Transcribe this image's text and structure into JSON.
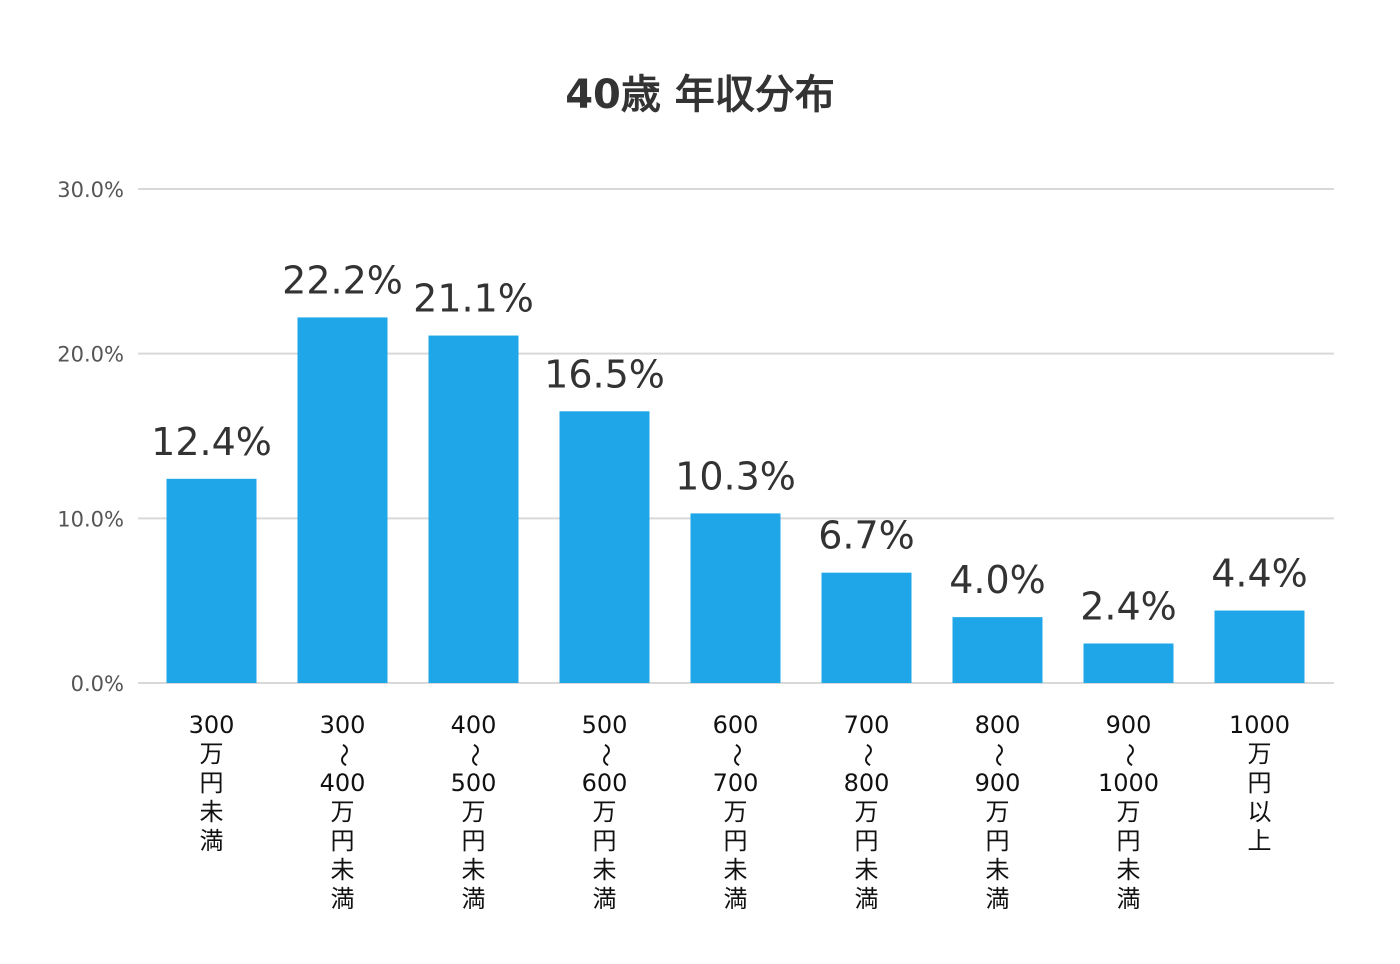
{
  "chart_data": {
    "type": "bar",
    "title": "40歳 年収分布",
    "xlabel": "",
    "ylabel": "",
    "ylim": [
      0,
      30
    ],
    "grid": true,
    "yticks": [
      "0.0%",
      "10.0%",
      "20.0%",
      "30.0%"
    ],
    "ytick_values": [
      0,
      10,
      20,
      30
    ],
    "categories": [
      [
        "300",
        "万",
        "円",
        "未",
        "満"
      ],
      [
        "300",
        "～",
        "400",
        "万",
        "円",
        "未",
        "満"
      ],
      [
        "400",
        "～",
        "500",
        "万",
        "円",
        "未",
        "満"
      ],
      [
        "500",
        "～",
        "600",
        "万",
        "円",
        "未",
        "満"
      ],
      [
        "600",
        "～",
        "700",
        "万",
        "円",
        "未",
        "満"
      ],
      [
        "700",
        "～",
        "800",
        "万",
        "円",
        "未",
        "満"
      ],
      [
        "800",
        "～",
        "900",
        "万",
        "円",
        "未",
        "満"
      ],
      [
        "900",
        "～",
        "1000",
        "万",
        "円",
        "未",
        "満"
      ],
      [
        "1000",
        "万",
        "円",
        "以",
        "上"
      ]
    ],
    "values": [
      12.4,
      22.2,
      21.1,
      16.5,
      10.3,
      6.7,
      4.0,
      2.4,
      4.4
    ],
    "data_labels": [
      "12.4%",
      "22.2%",
      "21.1%",
      "16.5%",
      "10.3%",
      "6.7%",
      "4.0%",
      "2.4%",
      "4.4%"
    ],
    "colors": {
      "bar": "#1ea6e8",
      "grid": "#d9d9d9",
      "title": "#333333",
      "tick": "#555555"
    }
  }
}
